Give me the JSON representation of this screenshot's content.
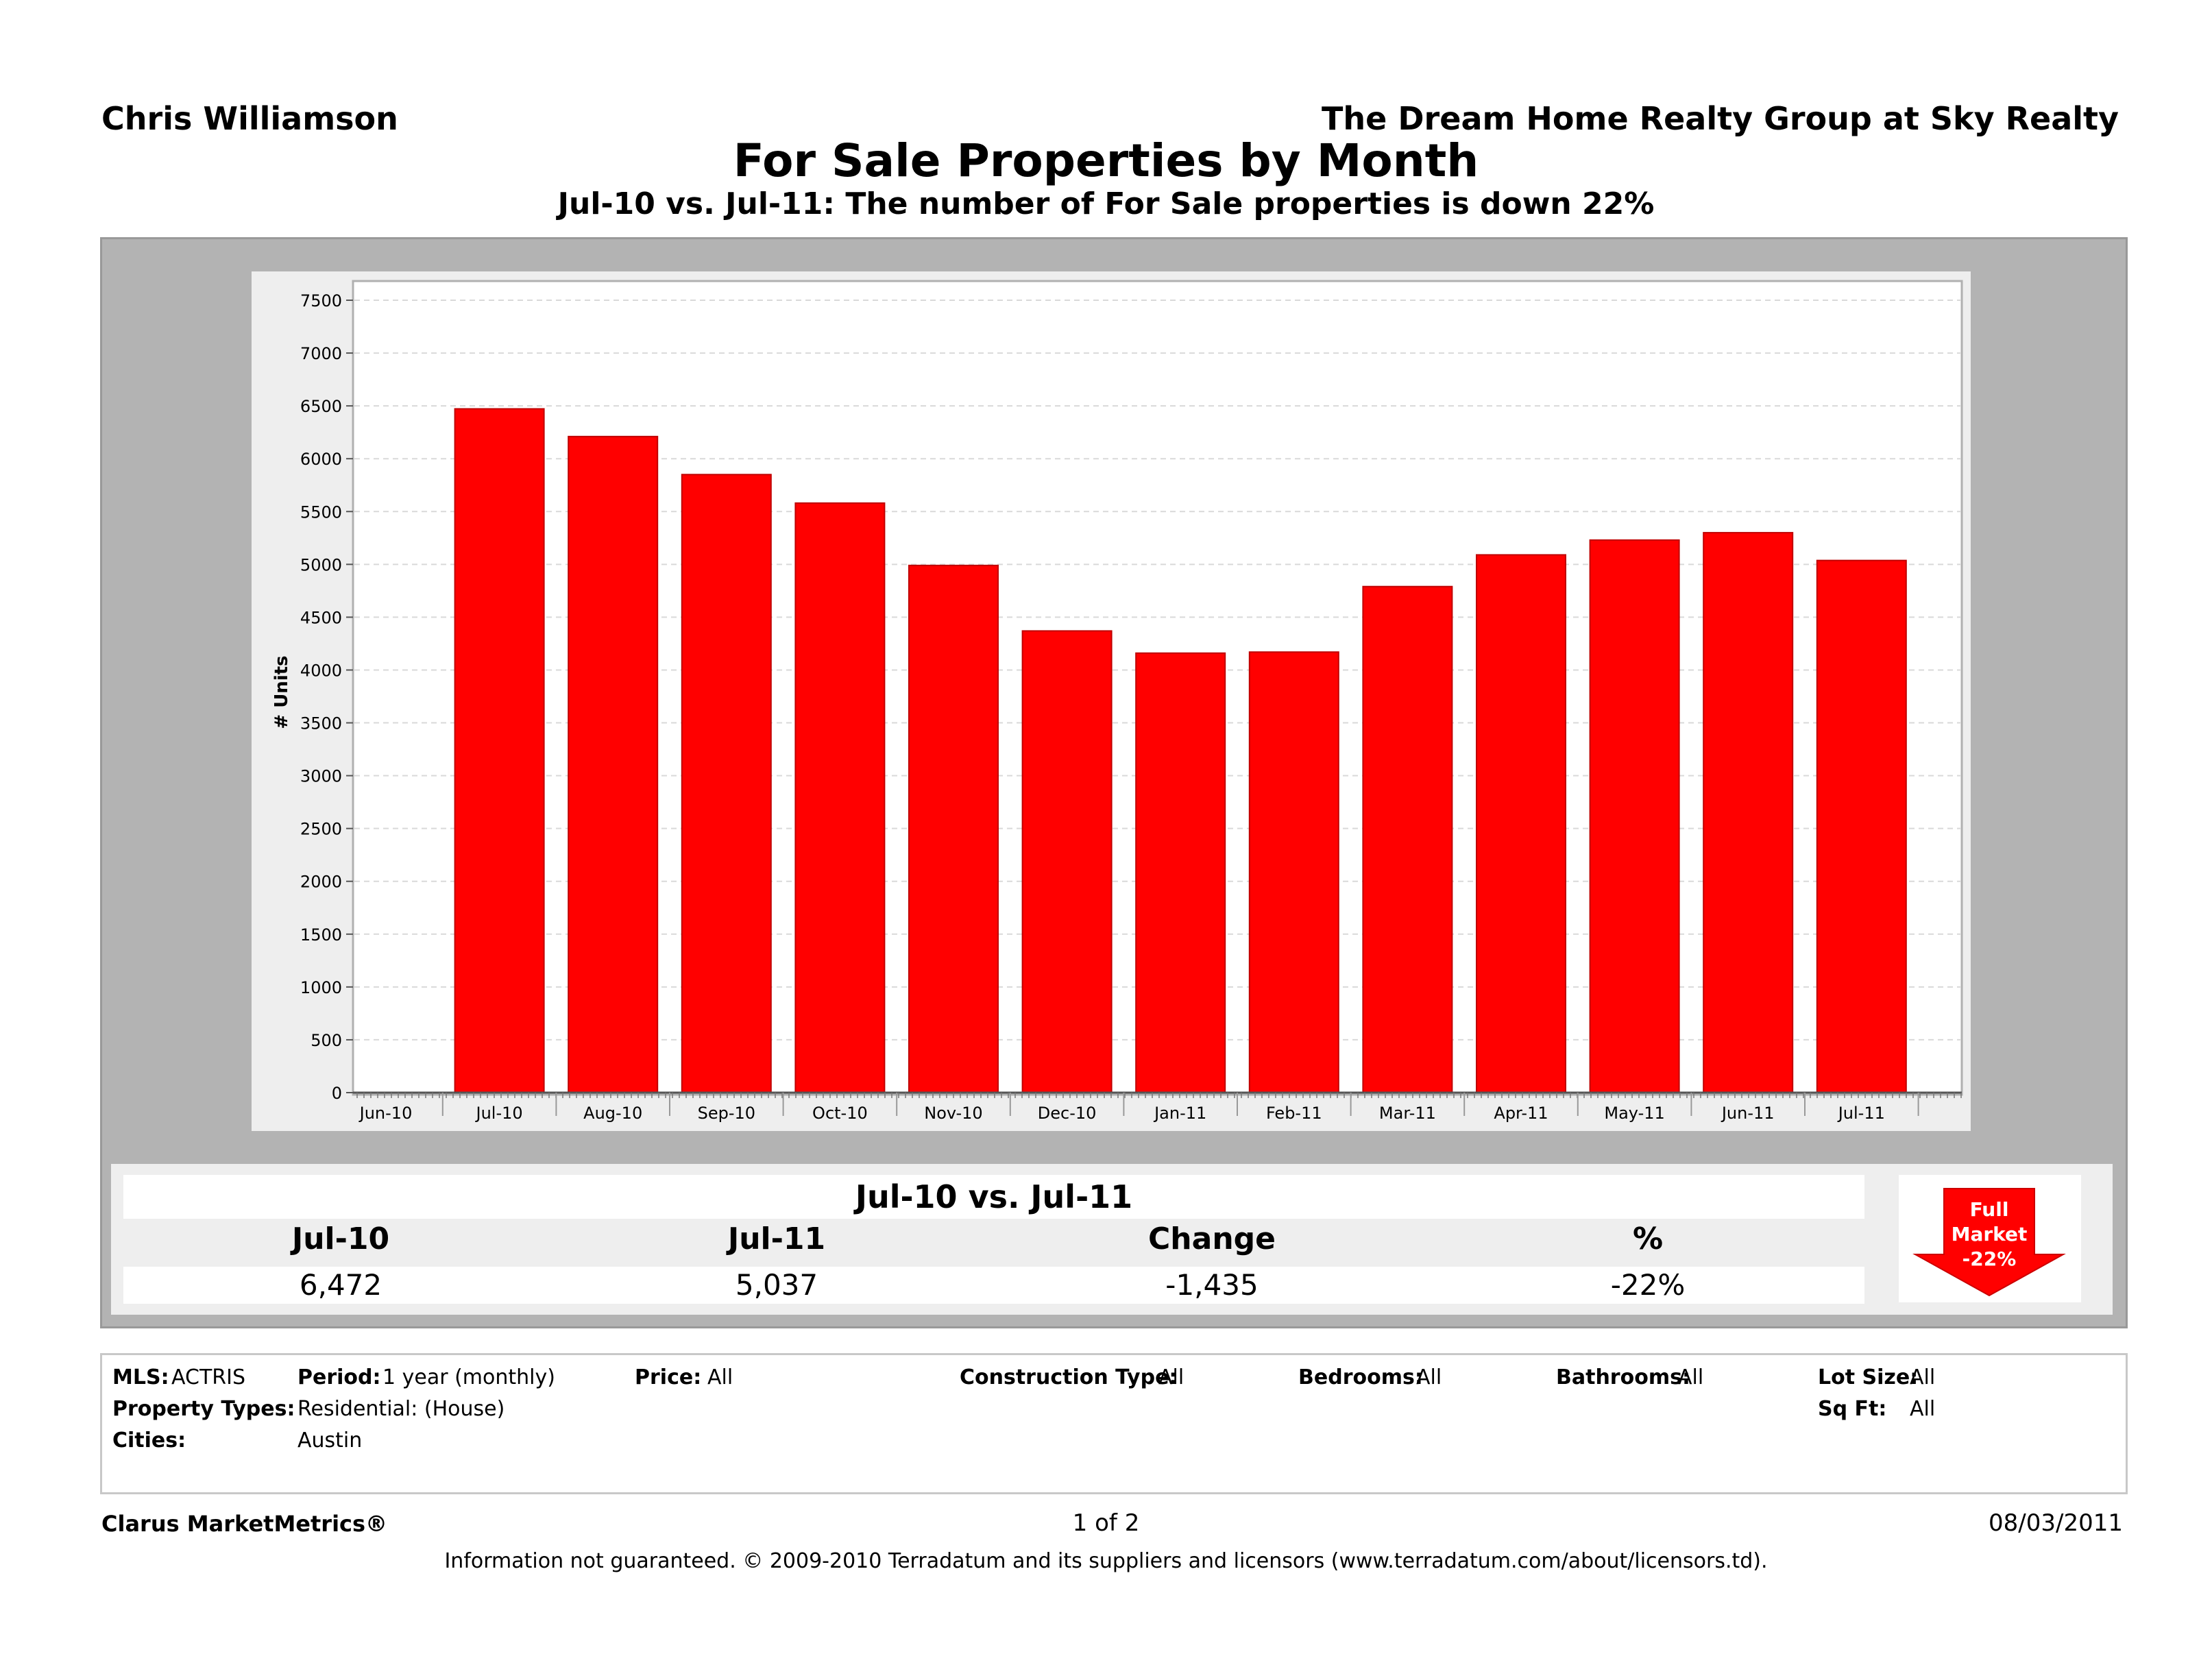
{
  "header": {
    "agent": "Chris Williamson",
    "company": "The Dream Home Realty Group at Sky Realty",
    "title": "For Sale Properties by Month",
    "subtitle": "Jul-10 vs. Jul-11: The number of For Sale properties is down 22%"
  },
  "chart_data": {
    "type": "bar",
    "categories": [
      "Jun-10",
      "Jul-10",
      "Aug-10",
      "Sep-10",
      "Oct-10",
      "Nov-10",
      "Dec-10",
      "Jan-11",
      "Feb-11",
      "Mar-11",
      "Apr-11",
      "May-11",
      "Jun-11",
      "Jul-11"
    ],
    "values": [
      null,
      6472,
      6210,
      5850,
      5580,
      4990,
      4370,
      4160,
      4170,
      4790,
      5090,
      5230,
      5300,
      5037
    ],
    "ylabel": "# Units",
    "ylim": [
      0,
      7500
    ],
    "yticks": [
      0,
      500,
      1000,
      1500,
      2000,
      2500,
      3000,
      3500,
      4000,
      4500,
      5000,
      5500,
      6000,
      6500,
      7000,
      7500
    ],
    "grid": true,
    "bar_color": "#ff0000"
  },
  "summary": {
    "heading": "Jul-10 vs. Jul-11",
    "columns": [
      {
        "label": "Jul-10",
        "value": "6,472"
      },
      {
        "label": "Jul-11",
        "value": "5,037"
      },
      {
        "label": "Change",
        "value": "-1,435"
      },
      {
        "label": "%",
        "value": "-22%"
      }
    ],
    "badge": {
      "line1": "Full",
      "line2": "Market",
      "line3": "-22%",
      "color": "#ff0000"
    }
  },
  "filters": {
    "mls_label": "MLS:",
    "mls_value": "ACTRIS",
    "period_label": "Period:",
    "period_value": "1 year (monthly)",
    "price_label": "Price:",
    "price_value": "All",
    "construction_label": "Construction Type:",
    "construction_value": "All",
    "bedrooms_label": "Bedrooms:",
    "bedrooms_value": "All",
    "bathrooms_label": "Bathrooms:",
    "bathrooms_value": "All",
    "lotsize_label": "Lot Size:",
    "lotsize_value": "All",
    "proptype_label": "Property Types:",
    "proptype_value": "Residential: (House)",
    "sqft_label": "Sq Ft:",
    "sqft_value": "All",
    "cities_label": "Cities:",
    "cities_value": "Austin"
  },
  "footer": {
    "brand": "Clarus MarketMetrics®",
    "page": "1 of 2",
    "date": "08/03/2011",
    "disclaimer": "Information not guaranteed.  © 2009-2010 Terradatum and its suppliers and licensors (www.terradatum.com/about/licensors.td)."
  }
}
